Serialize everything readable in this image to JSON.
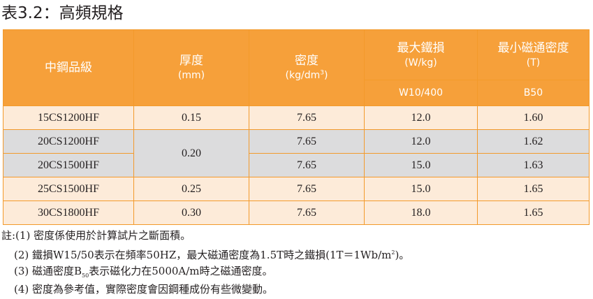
{
  "title": "表3.2：高頻規格",
  "table": {
    "headers": {
      "grade": "中鋼品級",
      "thickness": "厚度",
      "thickness_unit": "(mm)",
      "density": "密度",
      "density_unit_prefix": "(kg/dm",
      "density_unit_exp": "3",
      "density_unit_suffix": ")",
      "max_iron_loss": "最大鐵損",
      "max_iron_loss_unit": "(W/kg)",
      "min_flux_density": "最小磁通密度",
      "min_flux_density_unit": "(T)",
      "iron_loss_condition": "W10/400",
      "flux_condition": "B50"
    },
    "rows": [
      {
        "grade": "15CS1200HF",
        "thickness": "0.15",
        "density": "7.65",
        "iron_loss": "12.0",
        "flux": "1.60"
      },
      {
        "grade": "20CS1200HF",
        "thickness": "0.20",
        "density": "7.65",
        "iron_loss": "12.0",
        "flux": "1.62"
      },
      {
        "grade": "20CS1500HF",
        "thickness": "0.20",
        "density": "7.65",
        "iron_loss": "15.0",
        "flux": "1.63"
      },
      {
        "grade": "25CS1500HF",
        "thickness": "0.25",
        "density": "7.65",
        "iron_loss": "15.0",
        "flux": "1.65"
      },
      {
        "grade": "30CS1800HF",
        "thickness": "0.30",
        "density": "7.65",
        "iron_loss": "18.0",
        "flux": "1.65"
      }
    ]
  },
  "notes": {
    "n1": "註:(1) 密度係使用於計算試片之斷面積。",
    "n2_a": "(2) 鐵損W15/50表示在頻率50HZ，最大磁通密度為1.5T時之鐵損(1T＝1Wb/m",
    "n2_sup": "2",
    "n2_b": ")。",
    "n3_a": "(3) 磁通密度B",
    "n3_sub": "50",
    "n3_b": "表示磁化力在5000A/m時之磁通密度。",
    "n4": "(4) 密度為參考值，實際密度會因鋼種成份有些微變動。"
  },
  "colors": {
    "header_bg": "#f6a03a",
    "border": "#f39a2b",
    "row_peach": "#fdebd9",
    "row_gray": "#dcdcdd"
  }
}
